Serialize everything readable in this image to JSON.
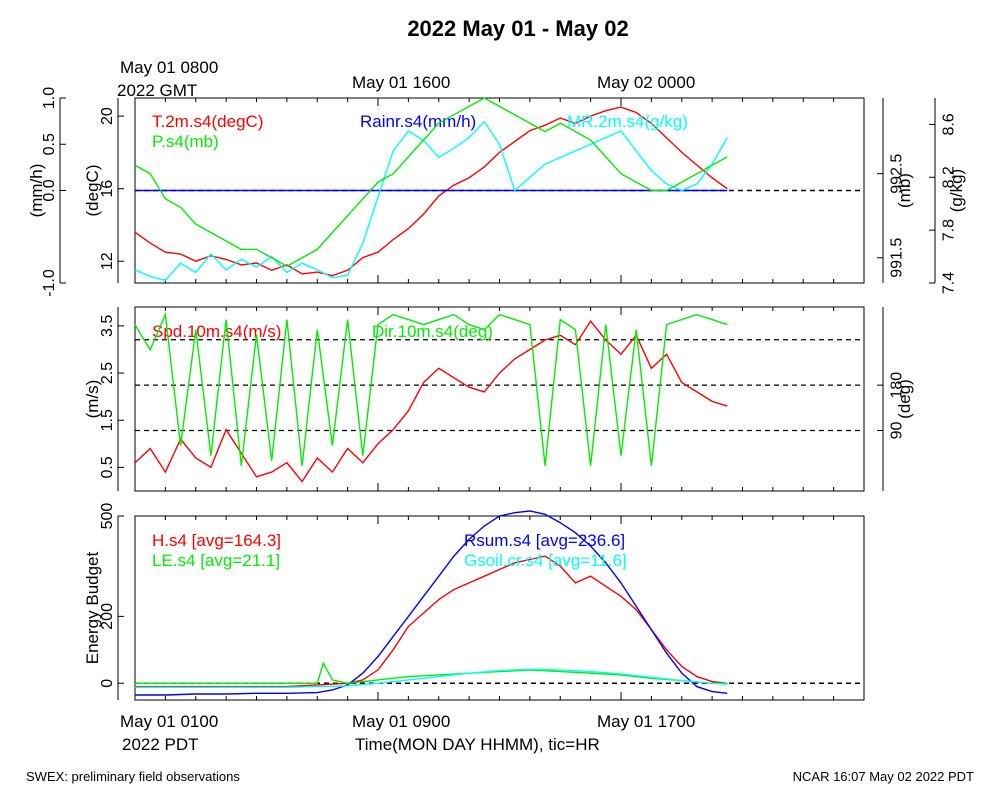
{
  "figure": {
    "title": "2022 May 01 - May 02",
    "top_time_labels": [
      {
        "line1": "May 01 0800",
        "line2": "2022 GMT"
      },
      {
        "line1": "May 01 1600",
        "line2": ""
      },
      {
        "line1": "May 02 0000",
        "line2": ""
      }
    ],
    "bottom_time_labels": [
      {
        "line1": "May 01 0100",
        "line2": "2022 PDT"
      },
      {
        "line1": "May 01 0900",
        "line2": ""
      },
      {
        "line1": "May 01 1700",
        "line2": ""
      }
    ],
    "xlabel": "Time(MON DAY HHMM), tic=HR",
    "footer_left": "SWEX: preliminary field observations",
    "footer_right": "NCAR 16:07 May 02 2022 PDT"
  },
  "colors": {
    "red": "#ff0000",
    "green": "#00ee00",
    "blue": "#0000ff",
    "cyan": "#00ffff",
    "black": "#000000"
  },
  "chart_data": [
    {
      "type": "line",
      "panel": "top",
      "x_unit": "hours since May 01 0100 PDT",
      "xlim": [
        0,
        24
      ],
      "axes": {
        "left_outer": {
          "label": "(mm/h)",
          "ticks": [
            "-1.0",
            "0.0",
            "0.5",
            "1.0"
          ],
          "tick_values": [
            -1.0,
            0.0,
            0.5,
            1.0
          ],
          "ylim": [
            -1.0,
            1.0
          ]
        },
        "left_inner": {
          "label": "(degC)",
          "ticks": [
            "12",
            "16",
            "20"
          ],
          "tick_values": [
            12,
            16,
            20
          ],
          "ylim": [
            10.8,
            21
          ]
        },
        "right_inner": {
          "label": "(mb)",
          "ticks": [
            "991.5",
            "992.5"
          ],
          "tick_values": [
            991.5,
            992.5
          ],
          "ylim": [
            991.2,
            993.4
          ]
        },
        "right_outer": {
          "label": "(g/kg)",
          "ticks": [
            "7.4",
            "7.8",
            "8.2",
            "8.6"
          ],
          "tick_values": [
            7.4,
            7.8,
            8.2,
            8.6
          ],
          "ylim": [
            7.4,
            8.8
          ]
        }
      },
      "zero_line": 0.0,
      "series": [
        {
          "name": "T.2m.s4(degC)",
          "color": "red",
          "axis": "left_inner",
          "x": [
            0,
            0.5,
            1,
            1.5,
            2,
            2.5,
            3,
            3.5,
            4,
            4.5,
            5,
            5.5,
            6,
            6.5,
            7,
            7.5,
            8,
            8.5,
            9,
            9.5,
            10,
            10.5,
            11,
            11.5,
            12,
            12.5,
            13,
            13.5,
            14,
            14.5,
            15,
            15.5,
            16,
            16.5,
            17,
            17.5,
            18,
            18.5,
            19,
            19.5
          ],
          "y": [
            13.6,
            13.0,
            12.5,
            12.4,
            12.0,
            12.3,
            12.1,
            11.8,
            11.9,
            11.5,
            11.8,
            11.3,
            11.4,
            11.2,
            11.5,
            12.2,
            12.5,
            13.2,
            13.8,
            14.6,
            15.6,
            16.2,
            16.6,
            17.2,
            18.0,
            18.6,
            19.2,
            19.5,
            19.9,
            19.6,
            20.0,
            20.3,
            20.5,
            20.2,
            19.6,
            18.8,
            18.0,
            17.3,
            16.6,
            16.0
          ]
        },
        {
          "name": "Rainr.s4(mm/h)",
          "color": "blue",
          "axis": "left_outer",
          "x": [
            0,
            19.5
          ],
          "y": [
            0.0,
            0.0
          ]
        },
        {
          "name": "MR.2m.s4(g/kg)",
          "color": "cyan",
          "axis": "right_outer",
          "x": [
            0,
            0.5,
            1,
            1.5,
            2,
            2.5,
            3,
            3.5,
            4,
            4.5,
            5,
            5.5,
            6,
            6.5,
            7,
            7.5,
            8,
            8.5,
            9,
            9.5,
            10,
            10.5,
            11,
            11.5,
            12,
            12.5,
            13,
            13.5,
            14,
            14.5,
            15,
            15.5,
            16,
            16.5,
            17,
            17.5,
            18,
            18.5,
            19,
            19.5
          ],
          "y": [
            7.5,
            7.45,
            7.42,
            7.55,
            7.48,
            7.62,
            7.5,
            7.58,
            7.52,
            7.6,
            7.48,
            7.55,
            7.5,
            7.44,
            7.46,
            7.7,
            8.05,
            8.4,
            8.55,
            8.48,
            8.35,
            8.42,
            8.5,
            8.62,
            8.45,
            8.1,
            8.2,
            8.3,
            8.35,
            8.4,
            8.45,
            8.5,
            8.55,
            8.4,
            8.25,
            8.15,
            8.1,
            8.15,
            8.3,
            8.5
          ]
        },
        {
          "name": "P.s4(mb)",
          "color": "green",
          "axis": "right_inner",
          "x": [
            0,
            0.5,
            1,
            1.5,
            2,
            2.5,
            3,
            3.5,
            4,
            4.5,
            5,
            5.5,
            6,
            6.5,
            7,
            7.5,
            8,
            8.5,
            9,
            9.5,
            10,
            10.5,
            11,
            11.5,
            12,
            12.5,
            13,
            13.5,
            14,
            14.5,
            15,
            15.5,
            16,
            16.5,
            17,
            17.5,
            18,
            18.5,
            19,
            19.5
          ],
          "y": [
            992.6,
            992.5,
            992.2,
            992.1,
            991.9,
            991.8,
            991.7,
            991.6,
            991.6,
            991.5,
            991.4,
            991.5,
            991.6,
            991.8,
            992.0,
            992.2,
            992.4,
            992.5,
            992.7,
            992.9,
            993.1,
            993.2,
            993.3,
            993.4,
            993.3,
            993.2,
            993.1,
            993.0,
            993.1,
            993.0,
            992.9,
            992.7,
            992.5,
            992.4,
            992.3,
            992.3,
            992.4,
            992.5,
            992.6,
            992.7
          ]
        }
      ]
    },
    {
      "type": "line",
      "panel": "middle",
      "x_unit": "hours since May 01 0100 PDT",
      "xlim": [
        0,
        24
      ],
      "axes": {
        "left": {
          "label": "(m/s)",
          "ticks": [
            "0.5",
            "1.5",
            "2.5",
            "3.5"
          ],
          "tick_values": [
            0.5,
            1.5,
            2.5,
            3.5
          ],
          "ylim": [
            0.0,
            3.9
          ]
        },
        "right": {
          "label": "(deg)",
          "ticks": [
            "90",
            "180"
          ],
          "tick_values": [
            90,
            180
          ],
          "ylim": [
            -30,
            335
          ]
        }
      },
      "ref_lines_deg": [
        90,
        180,
        270
      ],
      "series": [
        {
          "name": "Spd.10m.s4(m/s)",
          "color": "red",
          "axis": "left",
          "x": [
            0,
            0.5,
            1,
            1.5,
            2,
            2.5,
            3,
            3.5,
            4,
            4.5,
            5,
            5.5,
            6,
            6.5,
            7,
            7.5,
            8,
            8.5,
            9,
            9.5,
            10,
            10.5,
            11,
            11.5,
            12,
            12.5,
            13,
            13.5,
            14,
            14.5,
            15,
            15.5,
            16,
            16.5,
            17,
            17.5,
            18,
            18.5,
            19,
            19.5
          ],
          "y": [
            0.6,
            0.9,
            0.4,
            1.1,
            0.7,
            0.5,
            1.3,
            0.8,
            0.3,
            0.4,
            0.6,
            0.2,
            0.7,
            0.4,
            0.9,
            0.6,
            1.0,
            1.3,
            1.7,
            2.3,
            2.6,
            2.4,
            2.2,
            2.1,
            2.5,
            2.8,
            3.0,
            3.2,
            3.3,
            3.1,
            3.6,
            3.2,
            2.9,
            3.3,
            2.6,
            2.9,
            2.3,
            2.1,
            1.9,
            1.8
          ]
        },
        {
          "name": "Dir.10m.s4(deg)",
          "color": "green",
          "axis": "right",
          "x": [
            0,
            0.5,
            1,
            1.5,
            2,
            2.5,
            3,
            3.5,
            4,
            4.5,
            5,
            5.5,
            6,
            6.5,
            7,
            7.5,
            8,
            8.5,
            9,
            9.5,
            10,
            10.5,
            11,
            11.5,
            12,
            12.5,
            13,
            13.5,
            14,
            14.5,
            15,
            15.5,
            16,
            16.5,
            17,
            17.5,
            18,
            18.5,
            19,
            19.5
          ],
          "y": [
            300,
            250,
            320,
            60,
            290,
            40,
            310,
            20,
            280,
            30,
            310,
            20,
            290,
            60,
            310,
            40,
            300,
            320,
            310,
            300,
            310,
            320,
            300,
            290,
            320,
            310,
            300,
            20,
            310,
            290,
            20,
            300,
            40,
            290,
            20,
            300,
            310,
            320,
            310,
            300
          ]
        }
      ]
    },
    {
      "type": "line",
      "panel": "bottom",
      "x_unit": "hours since May 01 0100 PDT",
      "xlim": [
        0,
        24
      ],
      "axes": {
        "left": {
          "label": "Energy Budget",
          "ticks": [
            "0",
            "200",
            "500"
          ],
          "tick_values": [
            0,
            200,
            500
          ],
          "ylim": [
            -50,
            500
          ]
        }
      },
      "zero_line": 0,
      "series": [
        {
          "name": "H.s4 [avg=164.3]",
          "color": "red",
          "axis": "left",
          "x": [
            0,
            1,
            2,
            3,
            4,
            5,
            6,
            7,
            7.5,
            8,
            8.5,
            9,
            9.5,
            10,
            10.5,
            11,
            11.5,
            12,
            12.5,
            13,
            13.5,
            14,
            14.5,
            15,
            15.5,
            16,
            16.5,
            17,
            17.5,
            18,
            18.5,
            19,
            19.5
          ],
          "y": [
            -10,
            -10,
            -10,
            -10,
            -10,
            -10,
            -5,
            0,
            10,
            40,
            100,
            170,
            210,
            250,
            280,
            300,
            320,
            340,
            360,
            370,
            380,
            350,
            300,
            320,
            290,
            260,
            220,
            160,
            100,
            50,
            20,
            5,
            0
          ]
        },
        {
          "name": "Rsum.s4 [avg=236.6]",
          "color": "blue",
          "axis": "left",
          "x": [
            0,
            1,
            2,
            3,
            4,
            5,
            6,
            6.5,
            7,
            7.5,
            8,
            8.5,
            9,
            9.5,
            10,
            10.5,
            11,
            11.5,
            12,
            12.5,
            13,
            13.5,
            14,
            14.5,
            15,
            15.5,
            16,
            16.5,
            17,
            17.5,
            18,
            18.5,
            19,
            19.5
          ],
          "y": [
            -35,
            -35,
            -32,
            -32,
            -30,
            -30,
            -28,
            -20,
            -5,
            30,
            80,
            140,
            200,
            260,
            320,
            380,
            430,
            470,
            500,
            510,
            515,
            505,
            480,
            450,
            410,
            360,
            300,
            230,
            160,
            90,
            30,
            -10,
            -25,
            -30
          ]
        },
        {
          "name": "LE.s4 [avg=21.1]",
          "color": "green",
          "axis": "left",
          "x": [
            0,
            1,
            2,
            3,
            4,
            5,
            6,
            6.2,
            6.5,
            7,
            8,
            9,
            10,
            11,
            12,
            13,
            14,
            15,
            16,
            17,
            18,
            19,
            19.5
          ],
          "y": [
            0,
            0,
            0,
            0,
            0,
            0,
            0,
            60,
            10,
            0,
            10,
            20,
            25,
            30,
            35,
            40,
            35,
            30,
            25,
            15,
            8,
            0,
            0
          ]
        },
        {
          "name": "Gsoil.cr.s4 [avg=11.6]",
          "color": "cyan",
          "axis": "left",
          "x": [
            0,
            1,
            2,
            3,
            4,
            5,
            6,
            7,
            8,
            9,
            10,
            11,
            12,
            13,
            14,
            15,
            16,
            17,
            18,
            19,
            19.5
          ],
          "y": [
            -12,
            -12,
            -12,
            -12,
            -12,
            -12,
            -10,
            -8,
            0,
            10,
            20,
            30,
            38,
            42,
            40,
            35,
            28,
            18,
            8,
            0,
            -3
          ]
        }
      ]
    }
  ]
}
